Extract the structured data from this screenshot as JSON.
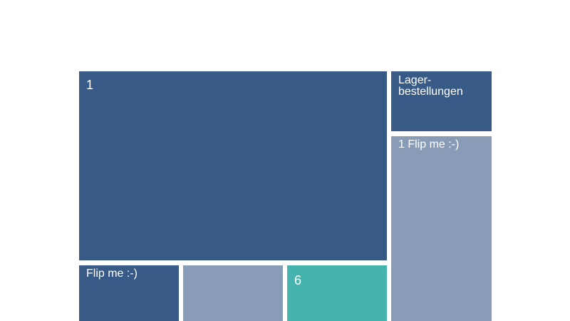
{
  "colors": {
    "dark_blue": "#375a87",
    "light_blue": "#889cb8",
    "teal": "#45b3ae",
    "background": "#ffffff"
  },
  "tiles": [
    {
      "id": "main",
      "label": "1",
      "color": "#375a87"
    },
    {
      "id": "lager",
      "label": "Lager-\nbestellungen",
      "color": "#375a87"
    },
    {
      "id": "flip-right",
      "label": "1 Flip me :-)",
      "color": "#889cb8"
    },
    {
      "id": "flip-bottom",
      "label": "Flip me :-)",
      "color": "#375a87"
    },
    {
      "id": "empty",
      "label": "",
      "color": "#889cb8"
    },
    {
      "id": "six",
      "label": "6",
      "color": "#45b3ae"
    }
  ]
}
